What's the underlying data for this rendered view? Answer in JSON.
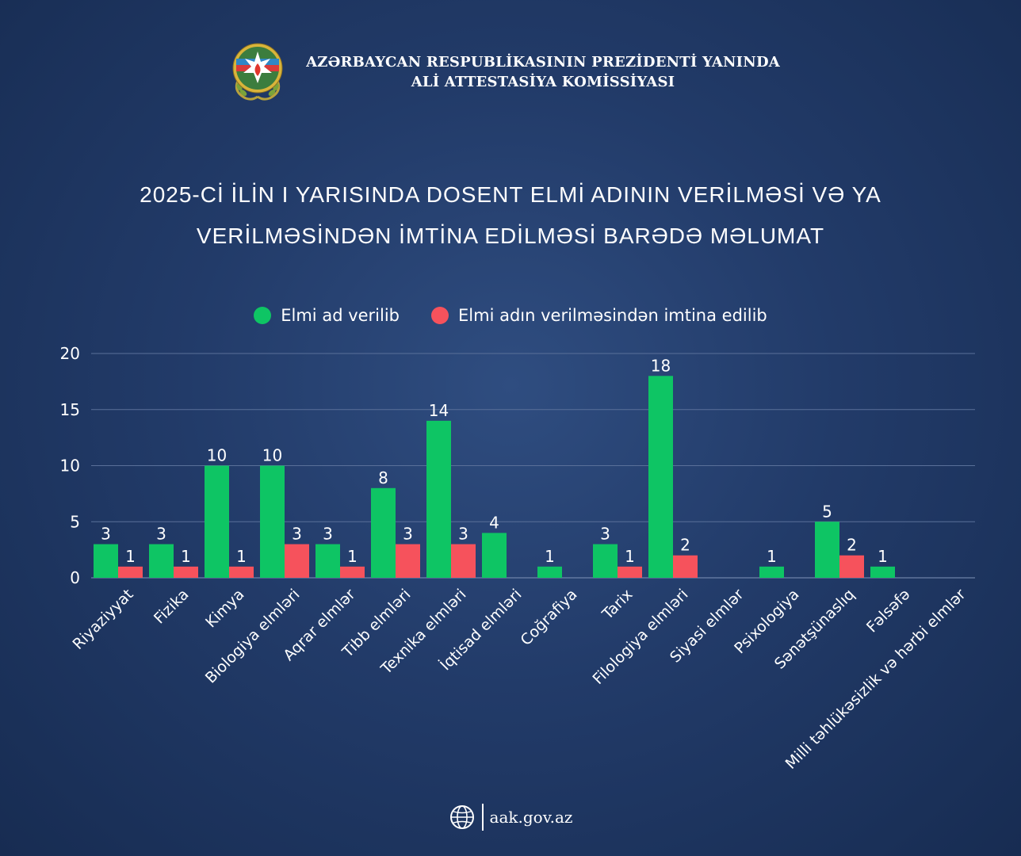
{
  "header": {
    "org_line1": "AZƏRBAYCAN RESPUBLİKASININ PREZİDENTİ YANINDA",
    "org_line2": "ALİ ATTESTASİYA KOMİSSİYASI"
  },
  "title": {
    "line1": "2025-Cİ İLİN I YARISINDA DOSENT ELMİ ADININ VERİLMƏSİ VƏ YA",
    "line2": "VERİLMƏSİNDƏN İMTİNA EDİLMƏSİ BARƏDƏ MƏLUMAT"
  },
  "footer": {
    "url": "aak.gov.az"
  },
  "colors": {
    "green": "#0ec564",
    "red": "#f6525c",
    "background": "#223b69"
  },
  "icons": {
    "emblem": "state-emblem-icon",
    "globe": "globe-icon"
  },
  "chart_data": {
    "type": "bar",
    "categories": [
      "Riyaziyyat",
      "Fizika",
      "Kimya",
      "Biologiya elmləri",
      "Aqrar elmlər",
      "Tibb elmləri",
      "Texnika elmləri",
      "İqtisad elmləri",
      "Coğrafiya",
      "Tarix",
      "Filologiya elmləri",
      "Siyasi elmlər",
      "Psixologiya",
      "Sənətşünaslıq",
      "Fəlsəfə",
      "Milli təhlükəsizlik və hərbi elmlər"
    ],
    "series": [
      {
        "name": "Elmi ad verilib",
        "color": "#0ec564",
        "values": [
          3,
          3,
          10,
          10,
          3,
          8,
          14,
          4,
          1,
          3,
          18,
          null,
          1,
          5,
          1,
          null
        ]
      },
      {
        "name": "Elmi adın verilməsindən imtina edilib",
        "color": "#f6525c",
        "values": [
          1,
          1,
          1,
          3,
          1,
          3,
          3,
          null,
          null,
          1,
          2,
          null,
          null,
          2,
          null,
          null
        ]
      }
    ],
    "yticks": [
      0,
      5,
      10,
      15,
      20
    ],
    "ylim": [
      0,
      20
    ],
    "grid": true,
    "legend": "top-center"
  }
}
